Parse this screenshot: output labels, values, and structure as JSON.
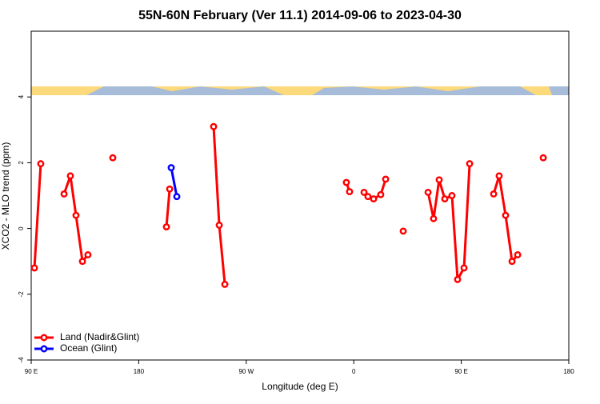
{
  "chart_data": {
    "type": "line",
    "title": "55N-60N February (Ver 11.1)   2014-09-06 to 2023-04-30",
    "x_label": "Longitude (deg E)",
    "y_label": "XCO2 - MLO trend (ppm)",
    "xlim": [
      90,
      540
    ],
    "xticks": [
      {
        "value": 90,
        "label": "90 E"
      },
      180,
      {
        "value": 270,
        "label": "90 W"
      },
      {
        "value": 360,
        "label": "0"
      },
      {
        "value": 450,
        "label": "90 E"
      },
      {
        "value": 540,
        "label": "180"
      }
    ],
    "ylim": [
      -4,
      6
    ],
    "yticks": [
      -4,
      -2,
      0,
      2,
      4
    ],
    "legend": "bottomleft",
    "series": [
      {
        "name": "Land (Nadir&Glint)",
        "color": "#ff0000",
        "x": [
          92.7,
          98.0,
          null,
          117.5,
          122.8,
          127.5,
          132.9,
          137.5,
          null,
          158.3,
          null,
          203.2,
          205.9,
          null,
          242.7,
          247.4,
          252.1,
          null,
          353.8,
          356.5,
          null,
          368.6,
          371.9,
          376.6,
          382.6,
          386.7,
          null,
          401.4,
          null,
          422.2,
          426.8,
          431.5,
          436.2,
          442.2,
          446.9,
          452.3,
          457.0,
          null,
          477.1,
          481.7,
          487.1,
          492.5,
          497.2,
          null,
          518.6
        ],
        "values": [
          -1.2,
          1.97,
          null,
          1.05,
          1.6,
          0.4,
          -1.0,
          -0.8,
          null,
          2.15,
          null,
          0.05,
          1.2,
          null,
          3.1,
          0.1,
          -1.7,
          null,
          1.4,
          1.12,
          null,
          1.1,
          0.97,
          0.9,
          1.03,
          1.5,
          null,
          -0.08,
          null,
          1.1,
          0.3,
          1.48,
          0.9,
          1.0,
          -1.55,
          -1.2,
          1.97,
          null,
          1.05,
          1.6,
          0.4,
          -1.0,
          -0.8,
          null,
          2.15
        ]
      },
      {
        "name": "Ocean (Glint)",
        "color": "#0000ff",
        "x": [
          207.2,
          211.9
        ],
        "values": [
          1.85,
          0.97
        ]
      }
    ]
  }
}
